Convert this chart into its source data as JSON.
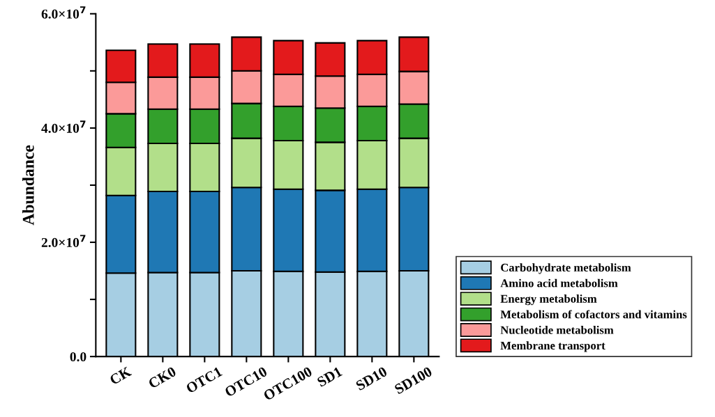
{
  "chart_data": {
    "type": "bar",
    "stacked": true,
    "ylabel": "Abundance",
    "categories": [
      "CK",
      "CK0",
      "OTC1",
      "OTC10",
      "OTC100",
      "SD1",
      "SD10",
      "SD100"
    ],
    "series": [
      {
        "name": "Carbohydrate metabolism",
        "color": "#a6cee3",
        "values": [
          14600000,
          14700000,
          14700000,
          15000000,
          14900000,
          14800000,
          14900000,
          15000000
        ]
      },
      {
        "name": "Amino acid metabolism",
        "color": "#1f78b4",
        "values": [
          13600000,
          14200000,
          14200000,
          14600000,
          14400000,
          14300000,
          14400000,
          14600000
        ]
      },
      {
        "name": "Energy metabolism",
        "color": "#b2df8a",
        "values": [
          8400000,
          8400000,
          8400000,
          8600000,
          8500000,
          8400000,
          8500000,
          8600000
        ]
      },
      {
        "name": "Metabolism of cofactors and vitamins",
        "color": "#33a02c",
        "values": [
          5900000,
          6000000,
          6000000,
          6100000,
          6000000,
          6000000,
          6000000,
          6000000
        ]
      },
      {
        "name": "Nucleotide metabolism",
        "color": "#fb9a99",
        "values": [
          5500000,
          5600000,
          5600000,
          5700000,
          5600000,
          5600000,
          5600000,
          5700000
        ]
      },
      {
        "name": "Membrane transport",
        "color": "#e31a1c",
        "values": [
          5600000,
          5800000,
          5800000,
          5900000,
          5900000,
          5800000,
          5900000,
          6000000
        ]
      }
    ],
    "ylim": [
      0,
      60000000
    ],
    "yticks": [
      {
        "value": 0,
        "label": "0.0"
      },
      {
        "value": 10000000,
        "label": null
      },
      {
        "value": 20000000,
        "label": "2.0×10$^{7}$"
      },
      {
        "value": 30000000,
        "label": null
      },
      {
        "value": 40000000,
        "label": "4.0×10$^{7}$"
      },
      {
        "value": 50000000,
        "label": null
      },
      {
        "value": 60000000,
        "label": "6.0×10$^{7}$"
      }
    ],
    "legend": "bottom right",
    "grid": false
  }
}
